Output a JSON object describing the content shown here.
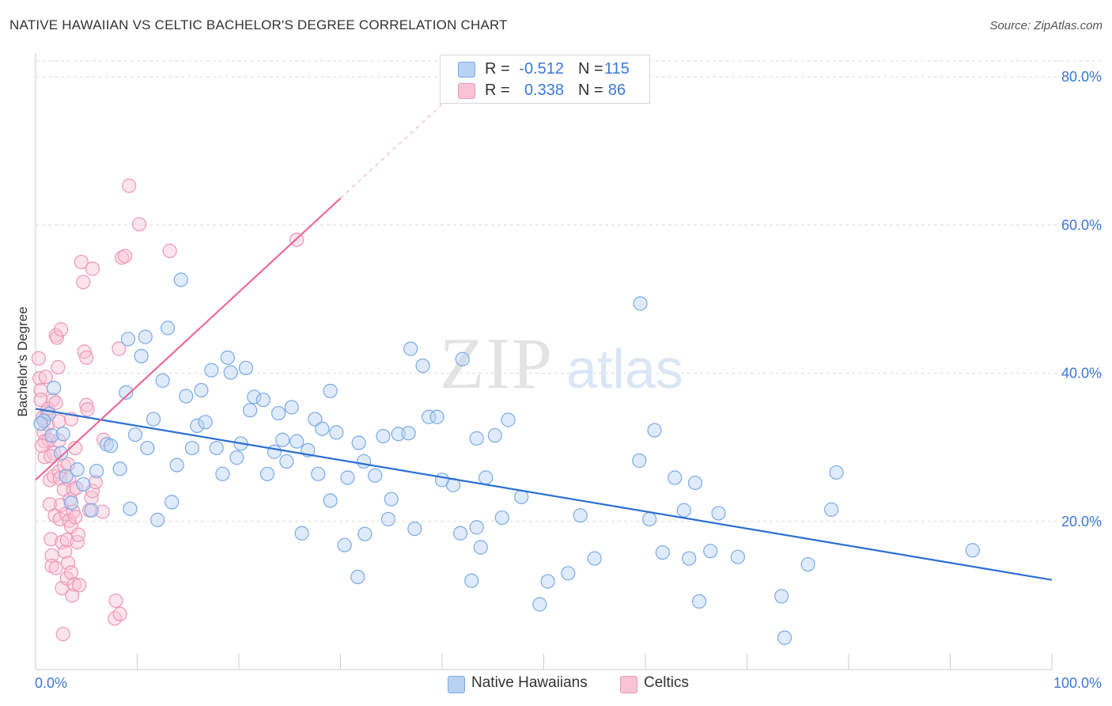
{
  "header": {
    "title": "NATIVE HAWAIIAN VS CELTIC BACHELOR'S DEGREE CORRELATION CHART",
    "source": "Source: ZipAtlas.com"
  },
  "legend": {
    "rows": [
      {
        "r_label": "R =",
        "r_value": "-0.512",
        "n_label": "N =",
        "n_value": "115"
      },
      {
        "r_label": "R =",
        "r_value": "0.338",
        "n_label": "N =",
        "n_value": "86"
      }
    ]
  },
  "bottom_legend": {
    "items": [
      {
        "label": "Native Hawaiians"
      },
      {
        "label": "Celtics"
      }
    ]
  },
  "watermark": {
    "zip": "ZIP",
    "atlas": "atlas"
  },
  "colors": {
    "blue_fill": "#b7d2f3",
    "blue_stroke": "#7aaae6",
    "blue_line": "#2b6fd1",
    "pink_fill": "#f8c3d4",
    "pink_stroke": "#ec97b6",
    "pink_line": "#e86b96",
    "tick_label": "#3b78d8",
    "grid": "#dcdcdc"
  },
  "chart_data": {
    "type": "scatter",
    "title": "NATIVE HAWAIIAN VS CELTIC BACHELOR'S DEGREE CORRELATION CHART",
    "xlabel": "",
    "ylabel": "Bachelor's Degree",
    "xlim": [
      0,
      100
    ],
    "ylim": [
      0,
      80
    ],
    "x_tick_labels": [
      "0.0%",
      "100.0%"
    ],
    "y_ticks": [
      {
        "value": 20,
        "label": "20.0%"
      },
      {
        "value": 40,
        "label": "40.0%"
      },
      {
        "value": 60,
        "label": "60.0%"
      },
      {
        "value": 80,
        "label": "80.0%"
      }
    ],
    "grid": true,
    "legend_position": "top-center",
    "series": [
      {
        "name": "Native Hawaiians",
        "R": -0.512,
        "N": 115,
        "trend": {
          "x": [
            0,
            100
          ],
          "y": [
            35.2,
            12.1
          ]
        },
        "points": [
          [
            1.8,
            38.0
          ],
          [
            1.3,
            34.5
          ],
          [
            0.8,
            33.6
          ],
          [
            1.6,
            31.6
          ],
          [
            2.5,
            29.2
          ],
          [
            2.7,
            31.8
          ],
          [
            4.1,
            27.0
          ],
          [
            4.7,
            25.0
          ],
          [
            3.5,
            22.5
          ],
          [
            5.5,
            21.5
          ],
          [
            7.0,
            30.4
          ],
          [
            6.0,
            26.8
          ],
          [
            7.4,
            30.2
          ],
          [
            8.3,
            27.1
          ],
          [
            8.9,
            37.4
          ],
          [
            9.1,
            44.6
          ],
          [
            9.3,
            21.7
          ],
          [
            9.8,
            31.7
          ],
          [
            10.4,
            42.3
          ],
          [
            10.8,
            44.9
          ],
          [
            11.0,
            29.9
          ],
          [
            11.6,
            33.8
          ],
          [
            12.0,
            20.2
          ],
          [
            12.5,
            39.0
          ],
          [
            13.0,
            46.1
          ],
          [
            13.4,
            22.6
          ],
          [
            13.9,
            27.6
          ],
          [
            14.3,
            52.6
          ],
          [
            14.8,
            36.9
          ],
          [
            15.4,
            29.9
          ],
          [
            15.9,
            32.9
          ],
          [
            16.3,
            37.7
          ],
          [
            16.7,
            33.4
          ],
          [
            17.3,
            40.4
          ],
          [
            17.8,
            29.9
          ],
          [
            18.4,
            26.4
          ],
          [
            18.9,
            42.1
          ],
          [
            19.2,
            40.1
          ],
          [
            19.8,
            28.6
          ],
          [
            20.2,
            30.5
          ],
          [
            20.7,
            40.7
          ],
          [
            21.1,
            35.0
          ],
          [
            21.5,
            36.8
          ],
          [
            22.4,
            36.4
          ],
          [
            22.8,
            26.4
          ],
          [
            23.5,
            29.4
          ],
          [
            23.9,
            34.6
          ],
          [
            24.3,
            31.0
          ],
          [
            24.7,
            28.1
          ],
          [
            25.2,
            35.4
          ],
          [
            25.7,
            30.8
          ],
          [
            26.2,
            18.4
          ],
          [
            26.8,
            29.6
          ],
          [
            27.5,
            33.8
          ],
          [
            27.8,
            26.4
          ],
          [
            28.2,
            32.5
          ],
          [
            29.0,
            22.8
          ],
          [
            29.6,
            32.0
          ],
          [
            29.0,
            37.6
          ],
          [
            30.4,
            16.8
          ],
          [
            30.7,
            25.9
          ],
          [
            31.7,
            12.5
          ],
          [
            31.8,
            30.6
          ],
          [
            32.3,
            28.1
          ],
          [
            32.4,
            18.3
          ],
          [
            33.4,
            26.2
          ],
          [
            34.2,
            31.5
          ],
          [
            34.7,
            20.3
          ],
          [
            35.0,
            23.0
          ],
          [
            35.7,
            31.8
          ],
          [
            36.7,
            31.9
          ],
          [
            36.9,
            43.3
          ],
          [
            37.3,
            19.0
          ],
          [
            38.1,
            41.0
          ],
          [
            38.7,
            34.1
          ],
          [
            39.5,
            34.1
          ],
          [
            40.0,
            25.6
          ],
          [
            41.1,
            24.9
          ],
          [
            41.8,
            18.4
          ],
          [
            42.0,
            41.9
          ],
          [
            42.9,
            12.0
          ],
          [
            43.4,
            31.2
          ],
          [
            43.4,
            19.2
          ],
          [
            43.8,
            16.5
          ],
          [
            44.3,
            25.9
          ],
          [
            45.2,
            31.6
          ],
          [
            45.9,
            20.5
          ],
          [
            46.5,
            33.7
          ],
          [
            47.8,
            23.3
          ],
          [
            49.6,
            8.8
          ],
          [
            50.4,
            11.9
          ],
          [
            52.4,
            13.0
          ],
          [
            53.6,
            20.8
          ],
          [
            55.0,
            15.0
          ],
          [
            59.4,
            28.2
          ],
          [
            59.5,
            49.4
          ],
          [
            60.4,
            20.3
          ],
          [
            60.9,
            32.3
          ],
          [
            61.7,
            15.8
          ],
          [
            62.9,
            25.9
          ],
          [
            63.8,
            21.5
          ],
          [
            64.3,
            15.0
          ],
          [
            64.9,
            25.2
          ],
          [
            65.3,
            9.2
          ],
          [
            66.4,
            16.0
          ],
          [
            67.2,
            21.1
          ],
          [
            69.1,
            15.2
          ],
          [
            73.4,
            9.9
          ],
          [
            73.7,
            4.3
          ],
          [
            76.0,
            14.2
          ],
          [
            78.3,
            21.6
          ],
          [
            78.8,
            26.6
          ],
          [
            92.2,
            16.1
          ],
          [
            0.5,
            33.2
          ],
          [
            3.0,
            26.1
          ]
        ]
      },
      {
        "name": "Celtics",
        "R": 0.338,
        "N": 86,
        "trend": {
          "x": [
            0,
            30
          ],
          "y": [
            25.6,
            63.6
          ],
          "x_ext": [
            30,
            40
          ],
          "y_ext": [
            63.6,
            76.3
          ]
        },
        "points": [
          [
            0.3,
            42.0
          ],
          [
            0.4,
            39.3
          ],
          [
            0.5,
            37.7
          ],
          [
            0.5,
            36.4
          ],
          [
            0.7,
            34.0
          ],
          [
            0.8,
            32.0
          ],
          [
            0.9,
            30.8
          ],
          [
            0.9,
            28.7
          ],
          [
            1.0,
            39.5
          ],
          [
            1.1,
            34.7
          ],
          [
            1.2,
            33.1
          ],
          [
            1.3,
            31.0
          ],
          [
            1.4,
            25.6
          ],
          [
            1.4,
            22.3
          ],
          [
            1.5,
            17.6
          ],
          [
            1.6,
            15.4
          ],
          [
            1.6,
            14.0
          ],
          [
            1.7,
            36.4
          ],
          [
            1.8,
            29.2
          ],
          [
            1.8,
            26.1
          ],
          [
            1.9,
            20.8
          ],
          [
            2.0,
            13.7
          ],
          [
            2.0,
            45.1
          ],
          [
            2.1,
            44.8
          ],
          [
            2.2,
            40.8
          ],
          [
            2.3,
            33.5
          ],
          [
            2.3,
            26.7
          ],
          [
            2.4,
            25.8
          ],
          [
            2.4,
            20.3
          ],
          [
            2.5,
            45.9
          ],
          [
            2.5,
            22.2
          ],
          [
            2.6,
            17.2
          ],
          [
            2.6,
            11.0
          ],
          [
            2.7,
            4.8
          ],
          [
            2.8,
            27.5
          ],
          [
            2.8,
            24.3
          ],
          [
            2.9,
            15.9
          ],
          [
            3.0,
            21.0
          ],
          [
            3.1,
            17.5
          ],
          [
            3.1,
            12.3
          ],
          [
            3.2,
            14.4
          ],
          [
            3.3,
            25.6
          ],
          [
            3.3,
            20.1
          ],
          [
            3.4,
            23.0
          ],
          [
            3.5,
            33.8
          ],
          [
            3.5,
            19.3
          ],
          [
            3.5,
            13.1
          ],
          [
            3.6,
            10.0
          ],
          [
            3.7,
            21.3
          ],
          [
            3.7,
            24.3
          ],
          [
            3.8,
            11.5
          ],
          [
            3.9,
            29.9
          ],
          [
            3.9,
            20.6
          ],
          [
            4.0,
            24.5
          ],
          [
            4.1,
            17.2
          ],
          [
            4.2,
            18.2
          ],
          [
            4.3,
            11.4
          ],
          [
            4.5,
            55.0
          ],
          [
            4.7,
            52.3
          ],
          [
            4.8,
            42.9
          ],
          [
            5.0,
            42.1
          ],
          [
            5.0,
            35.7
          ],
          [
            5.1,
            35.1
          ],
          [
            5.3,
            21.5
          ],
          [
            5.5,
            23.2
          ],
          [
            5.6,
            24.1
          ],
          [
            5.6,
            54.1
          ],
          [
            5.9,
            25.3
          ],
          [
            6.6,
            21.3
          ],
          [
            6.7,
            31.0
          ],
          [
            7.8,
            6.9
          ],
          [
            7.9,
            9.3
          ],
          [
            8.2,
            43.3
          ],
          [
            8.3,
            7.5
          ],
          [
            8.5,
            55.6
          ],
          [
            8.8,
            55.8
          ],
          [
            9.2,
            65.3
          ],
          [
            10.2,
            60.1
          ],
          [
            13.2,
            56.5
          ],
          [
            25.7,
            58.0
          ],
          [
            0.6,
            30.2
          ],
          [
            1.2,
            35.2
          ],
          [
            2.0,
            36.0
          ],
          [
            2.3,
            30.9
          ],
          [
            3.2,
            27.7
          ],
          [
            1.5,
            28.8
          ]
        ]
      }
    ]
  }
}
